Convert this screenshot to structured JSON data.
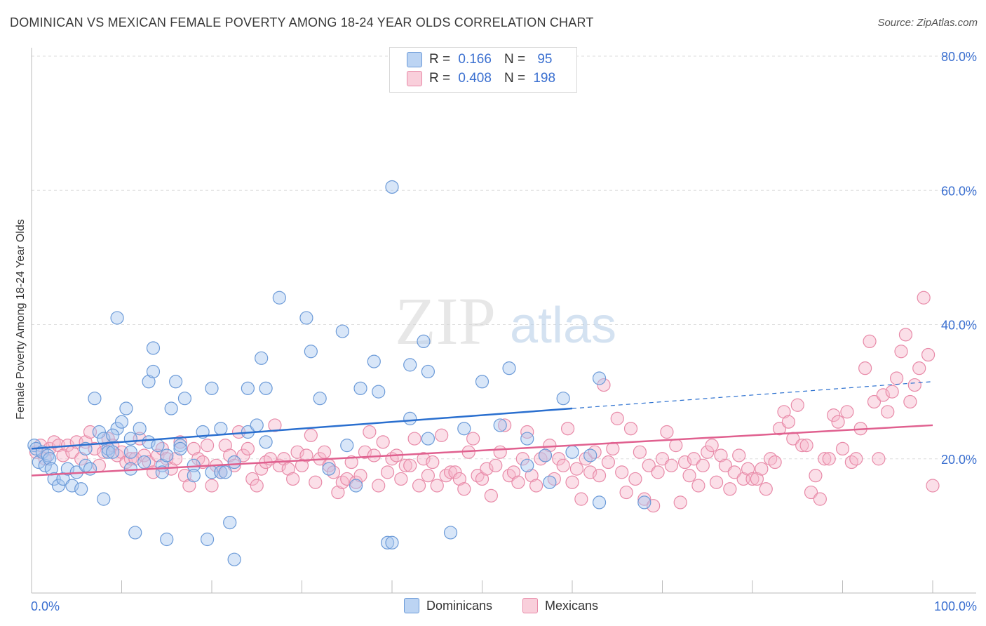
{
  "title": "DOMINICAN VS MEXICAN FEMALE POVERTY AMONG 18-24 YEAR OLDS CORRELATION CHART",
  "source": "Source: ZipAtlas.com",
  "watermark": {
    "zip": "ZIP",
    "atlas": "atlas"
  },
  "stats": [
    {
      "r_label": "R =",
      "r_value": "0.166",
      "n_label": "N =",
      "n_value": "95"
    },
    {
      "r_label": "R =",
      "r_value": "0.408",
      "n_label": "N =",
      "n_value": "198"
    }
  ],
  "colors": {
    "blue_fill": "#a9c7ef",
    "blue_stroke": "#6b9ad8",
    "blue_line": "#2a6fcf",
    "pink_fill": "#f6b8cb",
    "pink_stroke": "#e88aa8",
    "pink_line": "#e0608f",
    "tick_label": "#3a6fd0",
    "grid": "#dddddd"
  },
  "chart_data": {
    "type": "scatter",
    "title": "DOMINICAN VS MEXICAN FEMALE POVERTY AMONG 18-24 YEAR OLDS CORRELATION CHART",
    "xlabel": "",
    "ylabel": "Female Poverty Among 18-24 Year Olds",
    "xlim": [
      0,
      100
    ],
    "ylim": [
      0,
      80
    ],
    "x_tick_labels": [
      "0.0%",
      "100.0%"
    ],
    "y_ticks": [
      20,
      40,
      60,
      80
    ],
    "y_tick_labels": [
      "20.0%",
      "40.0%",
      "60.0%",
      "80.0%"
    ],
    "grid": true,
    "legend_position": "bottom",
    "series": [
      {
        "name": "Dominicans",
        "color": "#a9c7ef",
        "trend": {
          "x": [
            0,
            60
          ],
          "y": [
            21.5,
            27.5
          ],
          "dashed_to": [
            100,
            31.5
          ]
        },
        "points": [
          [
            0.3,
            22
          ],
          [
            0.5,
            21.5
          ],
          [
            0.8,
            19.5
          ],
          [
            1.2,
            21
          ],
          [
            1.5,
            19
          ],
          [
            1.8,
            20.5
          ],
          [
            2,
            20
          ],
          [
            2.2,
            18.5
          ],
          [
            2.5,
            17
          ],
          [
            3,
            16
          ],
          [
            3.5,
            17
          ],
          [
            4,
            18.5
          ],
          [
            4.5,
            16
          ],
          [
            5,
            18
          ],
          [
            5.5,
            15.5
          ],
          [
            6,
            19
          ],
          [
            6,
            21.5
          ],
          [
            6.5,
            18.5
          ],
          [
            7,
            29
          ],
          [
            7.5,
            24
          ],
          [
            8,
            14
          ],
          [
            8.5,
            21.5
          ],
          [
            8,
            23
          ],
          [
            8.5,
            21
          ],
          [
            9,
            21
          ],
          [
            9.5,
            24.5
          ],
          [
            9,
            23.5
          ],
          [
            9.5,
            41
          ],
          [
            10,
            25.5
          ],
          [
            10.5,
            27.5
          ],
          [
            11,
            18.5
          ],
          [
            11,
            21
          ],
          [
            11,
            23
          ],
          [
            11.5,
            9
          ],
          [
            12,
            24.5
          ],
          [
            12.5,
            19.5
          ],
          [
            13,
            31.5
          ],
          [
            13,
            22.5
          ],
          [
            13.5,
            33
          ],
          [
            13.5,
            36.5
          ],
          [
            14,
            22
          ],
          [
            14.5,
            19
          ],
          [
            14.5,
            18
          ],
          [
            15,
            8
          ],
          [
            15,
            20.5
          ],
          [
            15.5,
            27.5
          ],
          [
            16,
            31.5
          ],
          [
            16.5,
            22
          ],
          [
            17,
            29
          ],
          [
            16.5,
            21.5
          ],
          [
            18,
            19
          ],
          [
            18,
            17.5
          ],
          [
            19,
            24
          ],
          [
            19.5,
            8
          ],
          [
            20,
            30.5
          ],
          [
            20,
            18
          ],
          [
            21,
            18
          ],
          [
            21,
            24.5
          ],
          [
            21.5,
            18
          ],
          [
            22,
            10.5
          ],
          [
            22.5,
            19.5
          ],
          [
            22.5,
            5
          ],
          [
            24,
            30.5
          ],
          [
            24,
            24
          ],
          [
            25,
            25
          ],
          [
            25.5,
            35
          ],
          [
            26,
            30.5
          ],
          [
            26,
            22.5
          ],
          [
            27.5,
            44
          ],
          [
            30.5,
            41
          ],
          [
            31,
            36
          ],
          [
            32,
            29
          ],
          [
            33,
            18.5
          ],
          [
            34.5,
            39
          ],
          [
            36.5,
            30.5
          ],
          [
            35,
            22
          ],
          [
            36,
            16
          ],
          [
            38,
            34.5
          ],
          [
            38.5,
            30
          ],
          [
            39.5,
            7.5
          ],
          [
            40,
            7.5
          ],
          [
            40,
            60.5
          ],
          [
            42,
            34
          ],
          [
            42,
            26
          ],
          [
            43.5,
            37.5
          ],
          [
            44,
            33
          ],
          [
            44,
            23
          ],
          [
            46.5,
            9
          ],
          [
            48,
            24.5
          ],
          [
            50,
            31.5
          ],
          [
            52,
            25
          ],
          [
            53,
            33.5
          ],
          [
            55,
            19
          ],
          [
            55,
            23
          ],
          [
            57.5,
            16.5
          ],
          [
            57,
            20.5
          ],
          [
            59,
            29
          ],
          [
            60,
            21
          ],
          [
            62,
            20.5
          ],
          [
            63,
            32
          ],
          [
            63,
            13.5
          ],
          [
            68,
            13.5
          ]
        ]
      },
      {
        "name": "Mexicans",
        "color": "#f6b8cb",
        "trend": {
          "x": [
            0,
            100
          ],
          "y": [
            17.5,
            25
          ]
        },
        "points": [
          [
            0.5,
            21
          ],
          [
            1,
            22
          ],
          [
            1.5,
            20
          ],
          [
            2,
            21.5
          ],
          [
            2.5,
            22.5
          ],
          [
            3,
            22
          ],
          [
            3.5,
            20.5
          ],
          [
            4,
            22
          ],
          [
            4.5,
            21
          ],
          [
            5,
            22.5
          ],
          [
            5.5,
            20
          ],
          [
            6,
            22.5
          ],
          [
            6.5,
            24
          ],
          [
            7,
            21.5
          ],
          [
            7.5,
            19
          ],
          [
            8,
            21
          ],
          [
            8.5,
            23
          ],
          [
            9,
            22
          ],
          [
            9.5,
            20.5
          ],
          [
            10,
            21
          ],
          [
            10.5,
            19.5
          ],
          [
            11,
            20
          ],
          [
            11.5,
            20
          ],
          [
            12,
            23
          ],
          [
            12.5,
            20.5
          ],
          [
            13,
            19.5
          ],
          [
            13.5,
            18
          ],
          [
            14,
            20.5
          ],
          [
            14.5,
            21.5
          ],
          [
            15,
            20
          ],
          [
            15.5,
            18.5
          ],
          [
            16,
            20
          ],
          [
            16.5,
            22.5
          ],
          [
            17,
            17.5
          ],
          [
            17.5,
            16
          ],
          [
            18,
            21.5
          ],
          [
            18.5,
            20
          ],
          [
            19,
            19.5
          ],
          [
            19.5,
            22
          ],
          [
            20,
            16
          ],
          [
            20.5,
            19
          ],
          [
            21,
            18
          ],
          [
            21.5,
            22
          ],
          [
            22,
            20.5
          ],
          [
            22.5,
            19
          ],
          [
            23,
            24
          ],
          [
            23.5,
            20.5
          ],
          [
            24,
            21.5
          ],
          [
            24.5,
            17
          ],
          [
            25,
            16
          ],
          [
            25.5,
            18.5
          ],
          [
            26,
            19.5
          ],
          [
            26.5,
            20
          ],
          [
            27,
            25
          ],
          [
            27.5,
            19
          ],
          [
            28,
            20
          ],
          [
            28.5,
            18.5
          ],
          [
            29,
            17
          ],
          [
            29.5,
            21
          ],
          [
            30,
            19
          ],
          [
            30.5,
            20.5
          ],
          [
            31,
            23.5
          ],
          [
            31.5,
            16.5
          ],
          [
            32,
            20
          ],
          [
            32.5,
            21
          ],
          [
            33,
            19
          ],
          [
            33.5,
            18
          ],
          [
            34,
            15
          ],
          [
            34.5,
            16.5
          ],
          [
            35,
            17
          ],
          [
            35.5,
            19.5
          ],
          [
            36,
            16.5
          ],
          [
            36.5,
            17.5
          ],
          [
            37,
            21
          ],
          [
            37.5,
            24
          ],
          [
            38,
            20.5
          ],
          [
            38.5,
            16
          ],
          [
            39,
            22.5
          ],
          [
            39.5,
            18
          ],
          [
            40,
            20
          ],
          [
            40.5,
            20.5
          ],
          [
            41,
            17
          ],
          [
            41.5,
            19
          ],
          [
            42,
            19
          ],
          [
            42.5,
            23
          ],
          [
            43,
            16
          ],
          [
            43.5,
            20
          ],
          [
            44,
            17.5
          ],
          [
            44.5,
            19.5
          ],
          [
            45,
            16
          ],
          [
            45.5,
            23.5
          ],
          [
            46,
            17.5
          ],
          [
            46.5,
            18
          ],
          [
            47,
            18
          ],
          [
            47.5,
            17
          ],
          [
            48,
            15.5
          ],
          [
            48.5,
            21
          ],
          [
            49,
            23
          ],
          [
            49.5,
            17.5
          ],
          [
            50,
            17
          ],
          [
            50.5,
            18.5
          ],
          [
            51,
            14.5
          ],
          [
            51.5,
            19
          ],
          [
            52,
            21
          ],
          [
            52.5,
            25
          ],
          [
            53,
            17.5
          ],
          [
            53.5,
            18
          ],
          [
            54,
            16.5
          ],
          [
            54.5,
            20
          ],
          [
            55,
            24
          ],
          [
            55.5,
            17.5
          ],
          [
            56,
            16
          ],
          [
            56.5,
            20
          ],
          [
            57,
            20.5
          ],
          [
            57.5,
            22
          ],
          [
            58,
            17
          ],
          [
            58.5,
            20
          ],
          [
            59,
            19
          ],
          [
            59.5,
            24.5
          ],
          [
            60,
            16.5
          ],
          [
            60.5,
            18.5
          ],
          [
            61,
            14
          ],
          [
            61.5,
            20
          ],
          [
            62,
            18
          ],
          [
            62.5,
            21
          ],
          [
            63,
            17.5
          ],
          [
            63.5,
            31
          ],
          [
            64,
            19.5
          ],
          [
            64.5,
            21.5
          ],
          [
            65,
            26
          ],
          [
            65.5,
            18
          ],
          [
            66,
            15
          ],
          [
            66.5,
            24.5
          ],
          [
            67,
            17
          ],
          [
            67.5,
            21
          ],
          [
            68,
            14
          ],
          [
            68.5,
            19
          ],
          [
            69,
            13
          ],
          [
            69.5,
            18
          ],
          [
            70,
            20
          ],
          [
            70.5,
            24
          ],
          [
            71,
            19
          ],
          [
            71.5,
            22
          ],
          [
            72,
            13.5
          ],
          [
            72.5,
            19.5
          ],
          [
            73,
            17.5
          ],
          [
            73.5,
            20
          ],
          [
            74,
            16
          ],
          [
            74.5,
            19
          ],
          [
            75,
            21
          ],
          [
            75.5,
            22
          ],
          [
            76,
            16.5
          ],
          [
            76.5,
            20.5
          ],
          [
            77,
            19
          ],
          [
            77.5,
            15.5
          ],
          [
            78,
            18
          ],
          [
            78.5,
            20.5
          ],
          [
            79,
            17
          ],
          [
            79.5,
            18.5
          ],
          [
            80,
            17
          ],
          [
            80.5,
            17
          ],
          [
            81,
            18.5
          ],
          [
            81.5,
            15.5
          ],
          [
            82,
            20
          ],
          [
            82.5,
            19.5
          ],
          [
            83,
            24.5
          ],
          [
            83.5,
            27
          ],
          [
            84,
            25.5
          ],
          [
            84.5,
            23
          ],
          [
            85,
            28
          ],
          [
            85.5,
            22
          ],
          [
            86,
            22
          ],
          [
            86.5,
            15
          ],
          [
            87,
            17.5
          ],
          [
            87.5,
            14
          ],
          [
            88,
            20
          ],
          [
            88.5,
            20
          ],
          [
            89,
            26.5
          ],
          [
            89.5,
            25.5
          ],
          [
            90,
            21.5
          ],
          [
            90.5,
            27
          ],
          [
            91,
            19.5
          ],
          [
            91.5,
            20
          ],
          [
            92,
            24.5
          ],
          [
            92.5,
            33.5
          ],
          [
            93,
            37.5
          ],
          [
            93.5,
            28.5
          ],
          [
            94,
            20
          ],
          [
            94.5,
            29.5
          ],
          [
            95,
            27
          ],
          [
            95.5,
            30
          ],
          [
            96,
            32
          ],
          [
            96.5,
            36
          ],
          [
            97,
            38.5
          ],
          [
            97.5,
            28.5
          ],
          [
            98,
            31
          ],
          [
            98.5,
            33.5
          ],
          [
            99,
            44
          ],
          [
            99.5,
            35.5
          ],
          [
            100,
            16
          ]
        ]
      }
    ]
  }
}
